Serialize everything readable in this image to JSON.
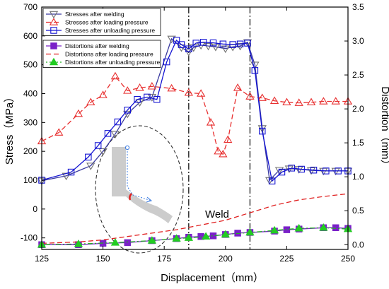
{
  "chart_data": {
    "type": "line",
    "xlabel": "Displacement（mm）",
    "ylabel_left": "Stress（MPa）",
    "ylabel_right": "Distortion（mm）",
    "xlim": [
      125,
      250
    ],
    "ylim_left": [
      -140,
      700
    ],
    "ylim_right": [
      -0.07,
      3.5
    ],
    "x_ticks": [
      125,
      150,
      175,
      200,
      225,
      250
    ],
    "y_left_ticks": [
      -100,
      0,
      100,
      200,
      300,
      400,
      500,
      600,
      700
    ],
    "y_right_ticks": [
      0.0,
      0.5,
      1.0,
      1.5,
      2.0,
      2.5,
      3.0,
      3.5
    ],
    "x_tick_labels": [
      "125",
      "150",
      "175",
      "200",
      "225",
      "250"
    ],
    "y_left_tick_labels": [
      "-100",
      "0",
      "100",
      "200",
      "300",
      "400",
      "500",
      "600",
      "700"
    ],
    "y_right_tick_labels": [
      "0.0",
      "0.5",
      "1.0",
      "1.5",
      "2.0",
      "2.5",
      "3.0",
      "3.5"
    ],
    "weld_lines_x": [
      185,
      210
    ],
    "annotation": "Weld",
    "legend_stress_placement": "top-left",
    "legend_distortion_placement": "upper-left",
    "stress_series": [
      {
        "name": "Stresses after welding",
        "color": "#3a3aa0",
        "dash": "none",
        "marker": "tri-down",
        "marker_color": "#707070",
        "x": [
          125,
          135,
          145,
          150,
          155,
          160,
          165,
          170,
          178,
          182,
          185,
          187,
          190,
          193,
          196,
          200,
          203,
          206,
          209,
          212,
          215,
          218,
          222,
          226,
          230,
          235,
          240,
          245,
          250
        ],
        "y": [
          98,
          115,
          150,
          200,
          260,
          330,
          370,
          388,
          590,
          560,
          545,
          560,
          568,
          565,
          562,
          556,
          562,
          565,
          578,
          500,
          280,
          100,
          135,
          140,
          138,
          134,
          132,
          132,
          132
        ]
      },
      {
        "name": "Stresses after loading pressure",
        "color": "#e83030",
        "dash": "7,4",
        "marker": "tri-up",
        "marker_color": "#e83030",
        "x": [
          125,
          132,
          140,
          145,
          150,
          155,
          160,
          165,
          170,
          178,
          185,
          190,
          194,
          197,
          199,
          201,
          205,
          210,
          215,
          220,
          225,
          230,
          235,
          240,
          245,
          250
        ],
        "y": [
          235,
          265,
          330,
          370,
          395,
          460,
          410,
          420,
          425,
          418,
          403,
          400,
          300,
          200,
          190,
          240,
          420,
          390,
          385,
          375,
          370,
          368,
          370,
          373,
          373,
          373
        ]
      },
      {
        "name": "Stresses after unloading pressure",
        "color": "#1414d2",
        "dash": "none",
        "marker": "square",
        "marker_color": "#1414d2",
        "x": [
          125,
          137,
          144,
          148,
          152,
          156,
          160,
          164,
          168,
          172,
          176,
          180,
          182,
          185,
          188,
          191,
          195,
          199,
          203,
          206,
          209,
          212,
          215,
          219,
          223,
          227,
          231,
          236,
          241,
          246,
          250
        ],
        "y": [
          100,
          128,
          180,
          220,
          262,
          302,
          343,
          380,
          388,
          380,
          510,
          585,
          570,
          555,
          575,
          578,
          576,
          572,
          570,
          572,
          575,
          480,
          270,
          97,
          128,
          142,
          138,
          135,
          132,
          132,
          132
        ]
      }
    ],
    "distortion_series": [
      {
        "name": "Distortions after welding",
        "color": "#7a20c8",
        "dash": "none",
        "marker": "square",
        "marker_color": "#7a20c8",
        "x": [
          125,
          140,
          150,
          160,
          170,
          180,
          185,
          190,
          195,
          200,
          205,
          210,
          220,
          225,
          230,
          240,
          245,
          250
        ],
        "y": [
          0.0,
          0.0,
          0.02,
          0.03,
          0.06,
          0.09,
          0.11,
          0.12,
          0.13,
          0.15,
          0.17,
          0.18,
          0.2,
          0.22,
          0.23,
          0.25,
          0.25,
          0.24
        ]
      },
      {
        "name": "Distortions after loading pressure",
        "color": "#e02020",
        "dash": "7,4",
        "marker": "none",
        "marker_color": "#e02020",
        "x": [
          125,
          140,
          150,
          160,
          170,
          180,
          190,
          200,
          210,
          220,
          230,
          240,
          250
        ],
        "y": [
          0.02,
          0.04,
          0.07,
          0.12,
          0.17,
          0.22,
          0.29,
          0.36,
          0.47,
          0.58,
          0.66,
          0.71,
          0.75
        ]
      },
      {
        "name": "Distortions after unloading pressure",
        "color": "#22b022",
        "dash": "2,3,7,3",
        "marker": "tri-up",
        "marker_color": "#22cc22",
        "x": [
          125,
          140,
          155,
          170,
          180,
          185,
          192,
          200,
          210,
          220,
          230,
          240,
          250
        ],
        "y": [
          0.0,
          0.01,
          0.03,
          0.06,
          0.09,
          0.1,
          0.12,
          0.15,
          0.18,
          0.21,
          0.24,
          0.25,
          0.23
        ]
      }
    ],
    "mark_step": {
      "Stresses after welding": 1,
      "Stresses after loading pressure": 1,
      "Stresses after unloading pressure": 1,
      "Distortions after welding": 1,
      "Distortions after loading pressure": 1,
      "Distortions after unloading pressure": 1
    }
  }
}
